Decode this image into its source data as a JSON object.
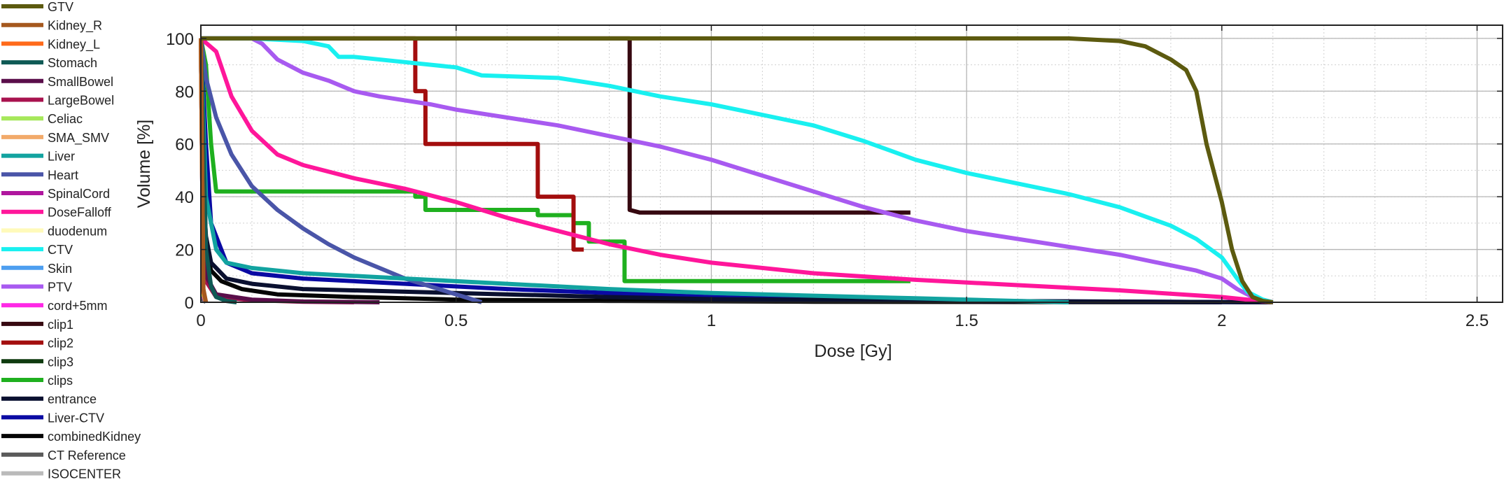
{
  "chart_data": {
    "type": "line",
    "title": "",
    "xlabel": "Dose [Gy]",
    "ylabel": "Volume [%]",
    "xlim": [
      0,
      2.55
    ],
    "ylim": [
      0,
      105
    ],
    "xticks": [
      0,
      0.5,
      1,
      1.5,
      2,
      2.5
    ],
    "xtick_labels": [
      "0",
      "0.5",
      "1",
      "1.5",
      "2",
      "2.5"
    ],
    "yticks": [
      0,
      20,
      40,
      60,
      80,
      100
    ],
    "ytick_labels": [
      "0",
      "20",
      "40",
      "60",
      "80",
      "100"
    ],
    "grid": true,
    "minor_grid": true,
    "legend_position": "left",
    "series": [
      {
        "name": "GTV",
        "color": "#5c5a0f",
        "x": [
          0,
          1.0,
          1.6,
          1.7,
          1.8,
          1.85,
          1.9,
          1.93,
          1.95,
          1.97,
          2.0,
          2.02,
          2.04,
          2.06,
          2.08,
          2.1
        ],
        "y": [
          100,
          100,
          100,
          100,
          99,
          97,
          92,
          88,
          80,
          60,
          38,
          20,
          8,
          2,
          0.5,
          0
        ]
      },
      {
        "name": "Kidney_R",
        "color": "#a5581e",
        "x": [
          0,
          0.005,
          0.01
        ],
        "y": [
          100,
          5,
          0
        ]
      },
      {
        "name": "Kidney_L",
        "color": "#ff6a1a",
        "x": [
          0,
          0.005,
          0.01
        ],
        "y": [
          100,
          4,
          0
        ]
      },
      {
        "name": "Stomach",
        "color": "#0f5a55",
        "x": [
          0,
          0.01,
          0.02,
          0.03,
          0.05,
          0.07
        ],
        "y": [
          100,
          20,
          6,
          2,
          0.5,
          0
        ]
      },
      {
        "name": "SmallBowel",
        "color": "#5a0e4a",
        "x": [
          0,
          0.01,
          0.03,
          0.1,
          0.2,
          0.35
        ],
        "y": [
          100,
          10,
          3,
          1,
          0.3,
          0
        ]
      },
      {
        "name": "LargeBowel",
        "color": "#a8124e",
        "x": [
          0,
          0.01,
          0.03,
          0.1,
          0.2,
          0.3
        ],
        "y": [
          100,
          8,
          2,
          0.8,
          0.2,
          0
        ]
      },
      {
        "name": "Celiac",
        "color": "#a6e85a",
        "x": [
          0,
          0.005,
          0.01
        ],
        "y": [
          100,
          3,
          0
        ]
      },
      {
        "name": "SMA_SMV",
        "color": "#f2aa6a",
        "x": [
          0,
          0.005,
          0.01
        ],
        "y": [
          100,
          3,
          0
        ]
      },
      {
        "name": "Liver",
        "color": "#12a3a0",
        "x": [
          0,
          0.01,
          0.03,
          0.05,
          0.1,
          0.2,
          0.4,
          0.6,
          0.8,
          1.0,
          1.2,
          1.4,
          1.7
        ],
        "y": [
          100,
          40,
          20,
          15,
          13,
          11,
          9,
          7,
          5,
          3.5,
          2.5,
          1.5,
          0
        ]
      },
      {
        "name": "Heart",
        "color": "#4a55a8",
        "x": [
          0,
          0.01,
          0.03,
          0.06,
          0.1,
          0.15,
          0.2,
          0.25,
          0.3,
          0.35,
          0.4,
          0.45,
          0.5,
          0.55
        ],
        "y": [
          100,
          85,
          70,
          56,
          44,
          35,
          28,
          22,
          17,
          13,
          9,
          6,
          3,
          0
        ]
      },
      {
        "name": "SpinalCord",
        "color": "#b0169e",
        "x": [
          0,
          0.005,
          0.01
        ],
        "y": [
          100,
          2,
          0
        ]
      },
      {
        "name": "DoseFalloff",
        "color": "#ff169a",
        "x": [
          0,
          0.03,
          0.06,
          0.1,
          0.15,
          0.2,
          0.3,
          0.4,
          0.5,
          0.6,
          0.7,
          0.8,
          0.9,
          1.0,
          1.2,
          1.4,
          1.6,
          1.8,
          2.0,
          2.1
        ],
        "y": [
          100,
          95,
          78,
          65,
          56,
          52,
          47,
          43,
          38,
          32,
          27,
          22,
          18,
          15,
          11,
          8.5,
          6.5,
          4.5,
          2,
          0
        ]
      },
      {
        "name": "duodenum",
        "color": "#fffaba",
        "x": [
          0,
          0.005,
          0.01
        ],
        "y": [
          100,
          2,
          0
        ]
      },
      {
        "name": "CTV",
        "color": "#19f0f0",
        "x": [
          0,
          0.1,
          0.2,
          0.25,
          0.27,
          0.3,
          0.4,
          0.5,
          0.55,
          0.7,
          0.8,
          0.9,
          1.0,
          1.1,
          1.2,
          1.3,
          1.4,
          1.5,
          1.6,
          1.7,
          1.8,
          1.9,
          1.95,
          2.0,
          2.03,
          2.05,
          2.08,
          2.1
        ],
        "y": [
          100,
          100,
          99,
          97,
          93,
          93,
          91,
          89,
          86,
          85,
          82,
          78,
          75,
          71,
          67,
          61,
          54,
          49,
          45,
          41,
          36,
          29,
          24,
          17,
          9,
          4,
          1,
          0
        ]
      },
      {
        "name": "Skin",
        "color": "#4d9ef0",
        "x": [
          0,
          0.005,
          0.01
        ],
        "y": [
          100,
          2,
          0
        ]
      },
      {
        "name": "PTV",
        "color": "#a85af0",
        "x": [
          0,
          0.1,
          0.12,
          0.15,
          0.2,
          0.25,
          0.3,
          0.35,
          0.45,
          0.5,
          0.6,
          0.7,
          0.8,
          0.9,
          1.0,
          1.1,
          1.2,
          1.3,
          1.4,
          1.5,
          1.6,
          1.7,
          1.8,
          1.9,
          1.95,
          2.0,
          2.03,
          2.06,
          2.1
        ],
        "y": [
          100,
          100,
          98,
          92,
          87,
          84,
          80,
          78,
          75,
          73,
          70,
          67,
          63,
          59,
          54,
          48,
          42,
          36,
          31,
          27,
          24,
          21,
          18,
          14,
          12,
          9,
          5,
          2,
          0
        ]
      },
      {
        "name": "cord+5mm",
        "color": "#ff28e6",
        "x": [
          0,
          0.005,
          0.01
        ],
        "y": [
          100,
          2,
          0
        ]
      },
      {
        "name": "clip1",
        "color": "#360810",
        "x": [
          0,
          0.84,
          0.84,
          0.86,
          1.39
        ],
        "y": [
          100,
          100,
          35,
          34,
          34
        ]
      },
      {
        "name": "clip2",
        "color": "#a30e0e",
        "x": [
          0,
          0.42,
          0.42,
          0.44,
          0.44,
          0.66,
          0.66,
          0.73,
          0.73,
          0.75
        ],
        "y": [
          100,
          100,
          80,
          80,
          60,
          60,
          40,
          40,
          20,
          20
        ]
      },
      {
        "name": "clip3",
        "color": "#0e3a0e",
        "x": [
          0,
          0.005,
          0.01
        ],
        "y": [
          100,
          2,
          0
        ]
      },
      {
        "name": "clips",
        "color": "#1fb01f",
        "x": [
          0,
          0.01,
          0.02,
          0.03,
          0.42,
          0.42,
          0.44,
          0.44,
          0.66,
          0.66,
          0.73,
          0.73,
          0.76,
          0.76,
          0.83,
          0.83,
          1.39
        ],
        "y": [
          100,
          90,
          60,
          42,
          42,
          40,
          40,
          35,
          35,
          33,
          33,
          30,
          30,
          23,
          23,
          8,
          8
        ]
      },
      {
        "name": "entrance",
        "color": "#0a1030",
        "x": [
          0,
          0.005,
          0.01,
          0.02,
          0.05,
          0.1,
          0.2,
          0.4,
          0.6,
          0.8,
          1.0,
          1.5,
          2.1
        ],
        "y": [
          100,
          40,
          25,
          15,
          9,
          7,
          5,
          4,
          3,
          2,
          1.2,
          0.5,
          0
        ]
      },
      {
        "name": "Liver-CTV",
        "color": "#0a0aa3",
        "x": [
          0,
          0.01,
          0.02,
          0.05,
          0.1,
          0.2,
          0.4,
          0.6,
          0.8,
          1.0,
          1.2,
          1.5,
          2.1
        ],
        "y": [
          100,
          60,
          30,
          15,
          11,
          9,
          7,
          5,
          3.5,
          2,
          1,
          0.5,
          0
        ]
      },
      {
        "name": "combinedKidney",
        "color": "#050505",
        "x": [
          0,
          0.01,
          0.02,
          0.04,
          0.08,
          0.15,
          0.3,
          0.5,
          0.8,
          1.2,
          2.0
        ],
        "y": [
          100,
          20,
          12,
          8,
          5,
          3,
          2,
          1,
          0.5,
          0.2,
          0
        ]
      },
      {
        "name": "CT Reference",
        "color": "#5a5a5a",
        "x": [
          0,
          0.005,
          0.01
        ],
        "y": [
          100,
          1,
          0
        ]
      },
      {
        "name": "ISOCENTER",
        "color": "#bababa",
        "x": [
          0,
          0.005,
          0.01
        ],
        "y": [
          100,
          1,
          0
        ]
      }
    ]
  }
}
